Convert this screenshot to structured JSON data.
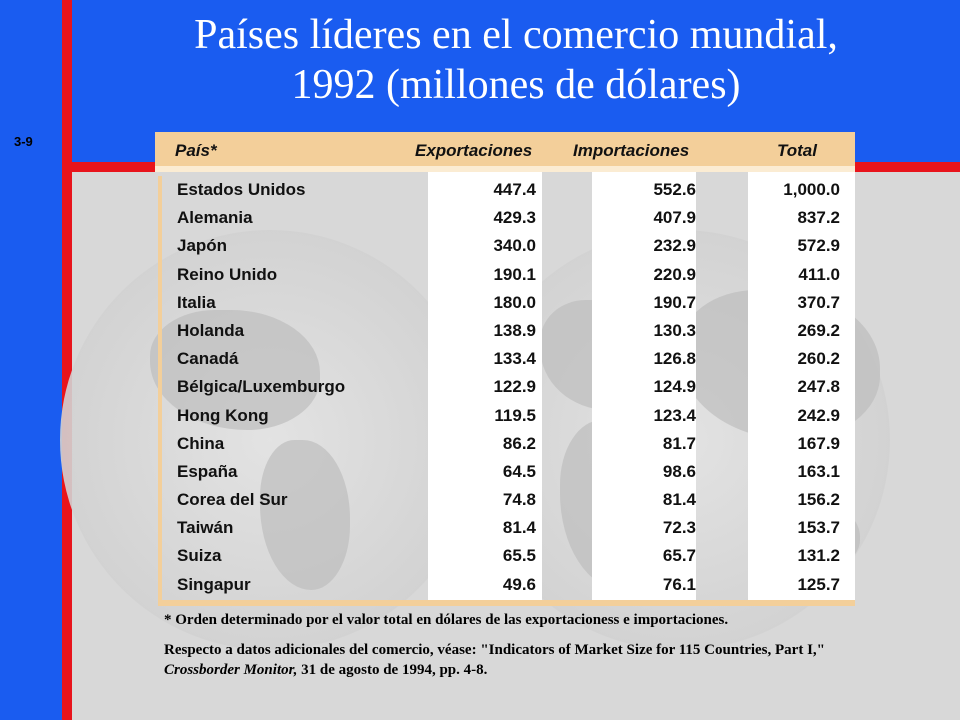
{
  "slide_number": "3-9",
  "title_line1": "Países líderes en el comercio mundial,",
  "title_line2": "1992 (millones de dólares)",
  "table": {
    "headers": {
      "country": "País*",
      "exports": "Exportaciones",
      "imports": "Importaciones",
      "total": "Total"
    },
    "rows": [
      {
        "country": "Estados Unidos",
        "exports": "447.4",
        "imports": "552.6",
        "total": "1,000.0"
      },
      {
        "country": "Alemania",
        "exports": "429.3",
        "imports": "407.9",
        "total": "837.2"
      },
      {
        "country": "Japón",
        "exports": "340.0",
        "imports": "232.9",
        "total": "572.9"
      },
      {
        "country": "Reino Unido",
        "exports": "190.1",
        "imports": "220.9",
        "total": "411.0"
      },
      {
        "country": "Italia",
        "exports": "180.0",
        "imports": "190.7",
        "total": "370.7"
      },
      {
        "country": "Holanda",
        "exports": "138.9",
        "imports": "130.3",
        "total": "269.2"
      },
      {
        "country": "Canadá",
        "exports": "133.4",
        "imports": "126.8",
        "total": "260.2"
      },
      {
        "country": "Bélgica/Luxemburgo",
        "exports": "122.9",
        "imports": "124.9",
        "total": "247.8"
      },
      {
        "country": "Hong Kong",
        "exports": "119.5",
        "imports": "123.4",
        "total": "242.9"
      },
      {
        "country": "China",
        "exports": "86.2",
        "imports": "81.7",
        "total": "167.9"
      },
      {
        "country": "España",
        "exports": "64.5",
        "imports": "98.6",
        "total": "163.1"
      },
      {
        "country": "Corea del Sur",
        "exports": "74.8",
        "imports": "81.4",
        "total": "156.2"
      },
      {
        "country": "Taiwán",
        "exports": "81.4",
        "imports": "72.3",
        "total": "153.7"
      },
      {
        "country": "Suiza",
        "exports": "65.5",
        "imports": "65.7",
        "total": "131.2"
      },
      {
        "country": "Singapur",
        "exports": "49.6",
        "imports": "76.1",
        "total": "125.7"
      }
    ]
  },
  "footnote": "* Orden determinado por el valor total en dólares de las exportacioness e importaciones.",
  "source": {
    "prefix": "Respecto a datos adicionales del comercio, véase: \"Indicators of Market Size for 115 Countries, Part I,\" ",
    "publication": "Crossborder Monitor,",
    "suffix": " 31 de agosto de 1994, pp. 4-8."
  },
  "colors": {
    "blue_background": "#1a5cf0",
    "red_accent": "#e8141b",
    "header_tan": "#f3cf9a",
    "content_gray": "#d8d8d8"
  }
}
